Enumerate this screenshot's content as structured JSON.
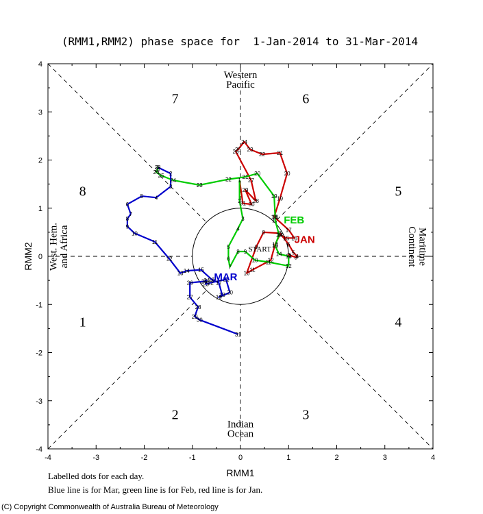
{
  "title": "(RMM1,RMM2) phase space for  1-Jan-2014 to 31-Mar-2014",
  "chart_data": {
    "type": "line",
    "xlabel": "RMM1",
    "ylabel": "RMM2",
    "xlim": [
      -4,
      4
    ],
    "ylim": [
      -4,
      4
    ],
    "xticks": [
      "-4",
      "-3",
      "-2",
      "-1",
      "0",
      "1",
      "2",
      "3",
      "4"
    ],
    "yticks": [
      "-4",
      "-3",
      "-2",
      "-1",
      "0",
      "1",
      "2",
      "3",
      "4"
    ],
    "unit_circle_radius": 1,
    "phase_labels": [
      "1",
      "2",
      "3",
      "4",
      "5",
      "6",
      "7",
      "8"
    ],
    "region_labels": {
      "top": [
        "Western",
        "Pacific"
      ],
      "bottom": [
        "Indian",
        "Ocean"
      ],
      "left": [
        "West. Hem.",
        "and Africa"
      ],
      "right": [
        "Maritime",
        "Continent"
      ]
    },
    "start_label": "START",
    "series": [
      {
        "name": "JAN",
        "color": "#cc0000",
        "days": [
          1,
          2,
          3,
          4,
          5,
          6,
          7,
          8,
          9,
          10,
          11,
          12,
          13,
          14,
          15,
          16,
          17,
          18,
          19,
          20,
          21,
          22,
          23,
          24,
          25,
          26,
          27,
          28,
          29,
          30,
          31
        ],
        "x": [
          1.03,
          1.0,
          1.15,
          1.18,
          1.1,
          1.0,
          0.82,
          0.48,
          0.33,
          0.13,
          0.25,
          0.63,
          0.72,
          0.82,
          0.95,
          1.12,
          1.0,
          0.7,
          0.82,
          0.97,
          0.82,
          0.45,
          0.2,
          0.08,
          -0.05,
          -0.1,
          0.22,
          0.32,
          0.1,
          0.23,
          0.05
        ],
        "y": [
          0.02,
          0.03,
          -0.02,
          0.0,
          0.08,
          0.25,
          0.48,
          0.5,
          0.2,
          -0.35,
          -0.28,
          -0.08,
          0.25,
          0.45,
          0.38,
          0.38,
          0.55,
          0.82,
          1.2,
          1.72,
          2.15,
          2.12,
          2.22,
          2.38,
          2.22,
          2.18,
          1.58,
          1.15,
          1.38,
          1.08,
          1.1
        ]
      },
      {
        "name": "FEB",
        "color": "#00cc00",
        "days": [
          1,
          2,
          3,
          4,
          5,
          6,
          7,
          8,
          9,
          10,
          11,
          12,
          13,
          14,
          15,
          16,
          17,
          18,
          19,
          20,
          21,
          22,
          23,
          24,
          25,
          26,
          27,
          28
        ],
        "x": [
          -0.02,
          -0.02,
          0.05,
          -0.05,
          -0.25,
          -0.25,
          -0.22,
          -0.05,
          0.1,
          0.3,
          0.58,
          1.0,
          1.0,
          0.8,
          0.72,
          0.8,
          0.72,
          0.72,
          0.7,
          0.35,
          0.1,
          -0.25,
          -0.85,
          -1.4,
          -1.65,
          -1.75,
          -1.72,
          -1.72
        ],
        "y": [
          1.58,
          1.15,
          0.78,
          0.58,
          0.2,
          -0.05,
          -0.22,
          0.1,
          0.1,
          -0.08,
          -0.12,
          -0.2,
          0.0,
          0.05,
          0.22,
          0.45,
          0.75,
          0.82,
          1.25,
          1.72,
          1.65,
          1.6,
          1.48,
          1.58,
          1.68,
          1.75,
          1.8,
          1.85
        ]
      },
      {
        "name": "MAR",
        "color": "#0000cc",
        "days": [
          1,
          2,
          3,
          4,
          5,
          6,
          7,
          8,
          9,
          10,
          11,
          12,
          13,
          14,
          15,
          16,
          17,
          18,
          19,
          20,
          21,
          22,
          23,
          24,
          25,
          26,
          27,
          28,
          29,
          30,
          31
        ],
        "x": [
          -1.72,
          -1.45,
          -1.45,
          -1.75,
          -2.05,
          -2.35,
          -2.28,
          -2.35,
          -2.35,
          -2.2,
          -1.78,
          -1.48,
          -1.25,
          -1.12,
          -0.82,
          -0.6,
          -0.45,
          -0.38,
          -0.45,
          -0.22,
          -0.3,
          -0.62,
          -0.72,
          -0.7,
          -0.75,
          -1.05,
          -1.05,
          -0.88,
          -0.95,
          -0.85,
          -0.05
        ],
        "y": [
          1.85,
          1.72,
          1.45,
          1.22,
          1.25,
          1.08,
          0.88,
          0.78,
          0.62,
          0.48,
          0.3,
          -0.05,
          -0.35,
          -0.3,
          -0.28,
          -0.48,
          -0.55,
          -0.8,
          -0.85,
          -0.75,
          -0.48,
          -0.55,
          -0.58,
          -0.5,
          -0.52,
          -0.55,
          -0.85,
          -1.05,
          -1.25,
          -1.32,
          -1.62
        ]
      }
    ]
  },
  "footnotes": {
    "line1": "Labelled dots for each day.",
    "line2": "Blue line is for Mar, green line is for Feb, red line is for Jan."
  },
  "copyright": "(C) Copyright Commonwealth of Australia Bureau of Meteorology"
}
